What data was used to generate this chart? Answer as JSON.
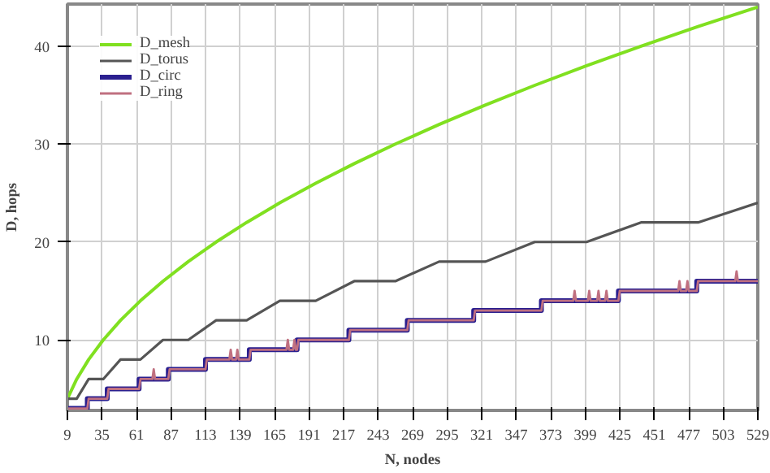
{
  "chart_data": {
    "type": "line",
    "xlabel": "N, nodes",
    "ylabel": "D, hops",
    "xlim": [
      9,
      529
    ],
    "xticks": [
      9,
      35,
      61,
      87,
      113,
      139,
      165,
      191,
      217,
      243,
      269,
      295,
      321,
      347,
      373,
      399,
      425,
      451,
      477,
      503,
      529
    ],
    "ylim": [
      2.8,
      44.3
    ],
    "yticks": [
      10,
      20,
      30,
      40
    ],
    "grid": true,
    "legend": "top left",
    "series": [
      {
        "name": "D_mesh",
        "color": "#80e020",
        "x": [
          9,
          16,
          25,
          36,
          49,
          64,
          81,
          100,
          121,
          144,
          169,
          196,
          225,
          256,
          289,
          324,
          361,
          400,
          441,
          484,
          529
        ],
        "values": [
          4,
          6,
          8,
          10,
          12,
          14,
          16,
          18,
          20,
          22,
          24,
          26,
          28,
          30,
          32,
          34,
          36,
          38,
          40,
          42,
          44
        ]
      },
      {
        "name": "D_torus",
        "color": "#555555",
        "x": [
          9,
          16,
          25,
          36,
          49,
          64,
          81,
          100,
          121,
          144,
          169,
          196,
          225,
          256,
          289,
          324,
          361,
          400,
          441,
          484,
          529
        ],
        "values": [
          4,
          4,
          6,
          6,
          8,
          8,
          10,
          10,
          12,
          12,
          14,
          14,
          16,
          16,
          18,
          18,
          20,
          20,
          22,
          22,
          24
        ]
      },
      {
        "name": "D_circ",
        "color": "#2a1f8f",
        "x": [
          9,
          24,
          24,
          39,
          39,
          63,
          63,
          85,
          85,
          113,
          113,
          146,
          146,
          182,
          182,
          221,
          221,
          265,
          265,
          315,
          315,
          366,
          366,
          424,
          424,
          483,
          483,
          529
        ],
        "values": [
          3,
          3,
          4,
          4,
          5,
          5,
          6,
          6,
          7,
          7,
          8,
          8,
          9,
          9,
          10,
          10,
          11,
          11,
          12,
          12,
          13,
          13,
          14,
          14,
          15,
          15,
          16,
          16
        ]
      },
      {
        "name": "D_ring",
        "color": "#c07080",
        "x": [
          9,
          24,
          25,
          39,
          40,
          63,
          64,
          73,
          74,
          75,
          85,
          86,
          113,
          114,
          131,
          132,
          133,
          136,
          137,
          138,
          146,
          147,
          174,
          175,
          176,
          179,
          180,
          181,
          182,
          183,
          221,
          222,
          265,
          266,
          315,
          316,
          366,
          367,
          390,
          391,
          392,
          401,
          402,
          403,
          408,
          409,
          410,
          414,
          415,
          416,
          424,
          425,
          469,
          470,
          471,
          475,
          476,
          477,
          483,
          484,
          512,
          513,
          514,
          529
        ],
        "values": [
          3,
          3,
          4,
          4,
          5,
          5,
          6,
          6,
          7,
          6,
          6,
          7,
          7,
          8,
          8,
          9,
          8,
          8,
          9,
          8,
          8,
          9,
          9,
          10,
          9,
          9,
          10,
          9,
          9,
          10,
          10,
          11,
          11,
          12,
          12,
          13,
          13,
          14,
          14,
          15,
          14,
          14,
          15,
          14,
          14,
          15,
          14,
          14,
          15,
          14,
          14,
          15,
          15,
          16,
          15,
          15,
          16,
          15,
          15,
          16,
          16,
          17,
          16,
          16
        ]
      }
    ]
  }
}
